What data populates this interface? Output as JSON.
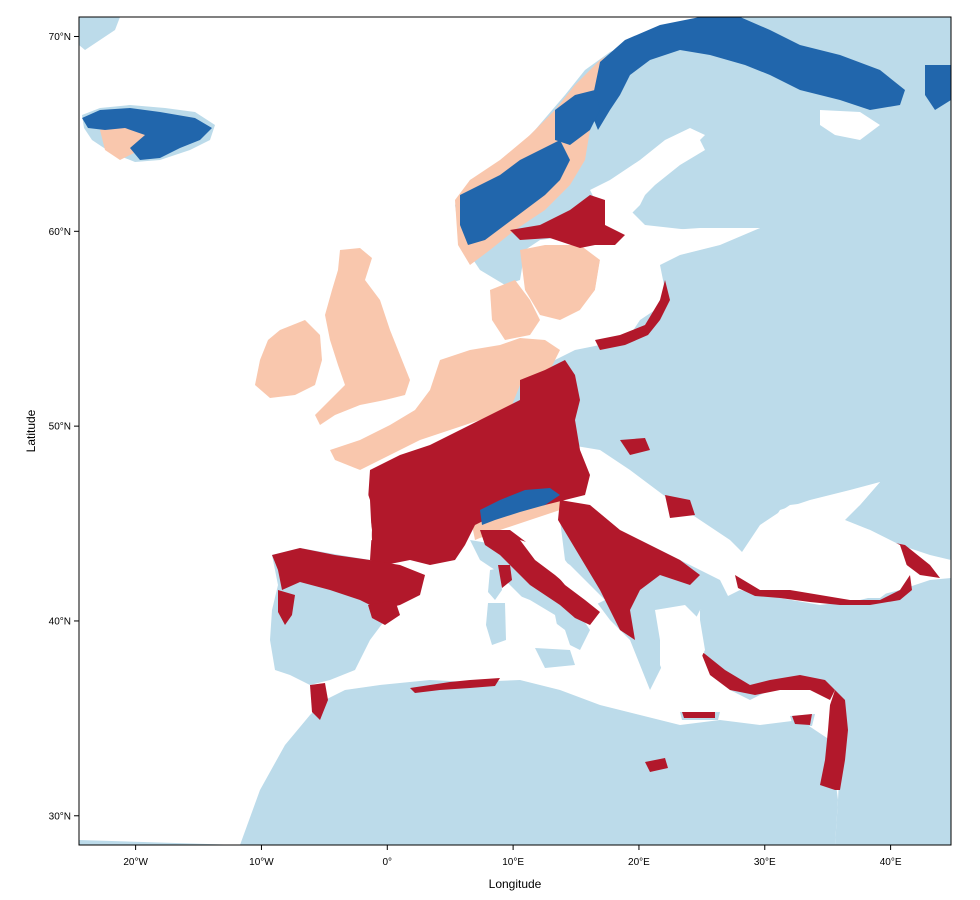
{
  "map": {
    "xlabel": "Longitude",
    "ylabel": "Latitude",
    "lon_range": [
      -24.5,
      44.8
    ],
    "lat_range": [
      28.5,
      71.0
    ],
    "x_ticks": [
      {
        "value": -20,
        "label": "20°W"
      },
      {
        "value": -10,
        "label": "10°W"
      },
      {
        "value": 0,
        "label": "0°"
      },
      {
        "value": 10,
        "label": "10°E"
      },
      {
        "value": 20,
        "label": "20°E"
      },
      {
        "value": 30,
        "label": "30°E"
      },
      {
        "value": 40,
        "label": "40°E"
      }
    ],
    "y_ticks": [
      {
        "value": 30,
        "label": "30°N"
      },
      {
        "value": 40,
        "label": "40°N"
      },
      {
        "value": 50,
        "label": "50°N"
      },
      {
        "value": 60,
        "label": "60°N"
      },
      {
        "value": 70,
        "label": "70°N"
      }
    ],
    "colors": {
      "sea": "#ffffff",
      "land_other": "#bcdbea",
      "class_dark_red": "#b2182b",
      "class_light_salmon": "#f9c7ad",
      "class_dark_blue": "#2166ac"
    },
    "grid": false,
    "legend": "none"
  }
}
